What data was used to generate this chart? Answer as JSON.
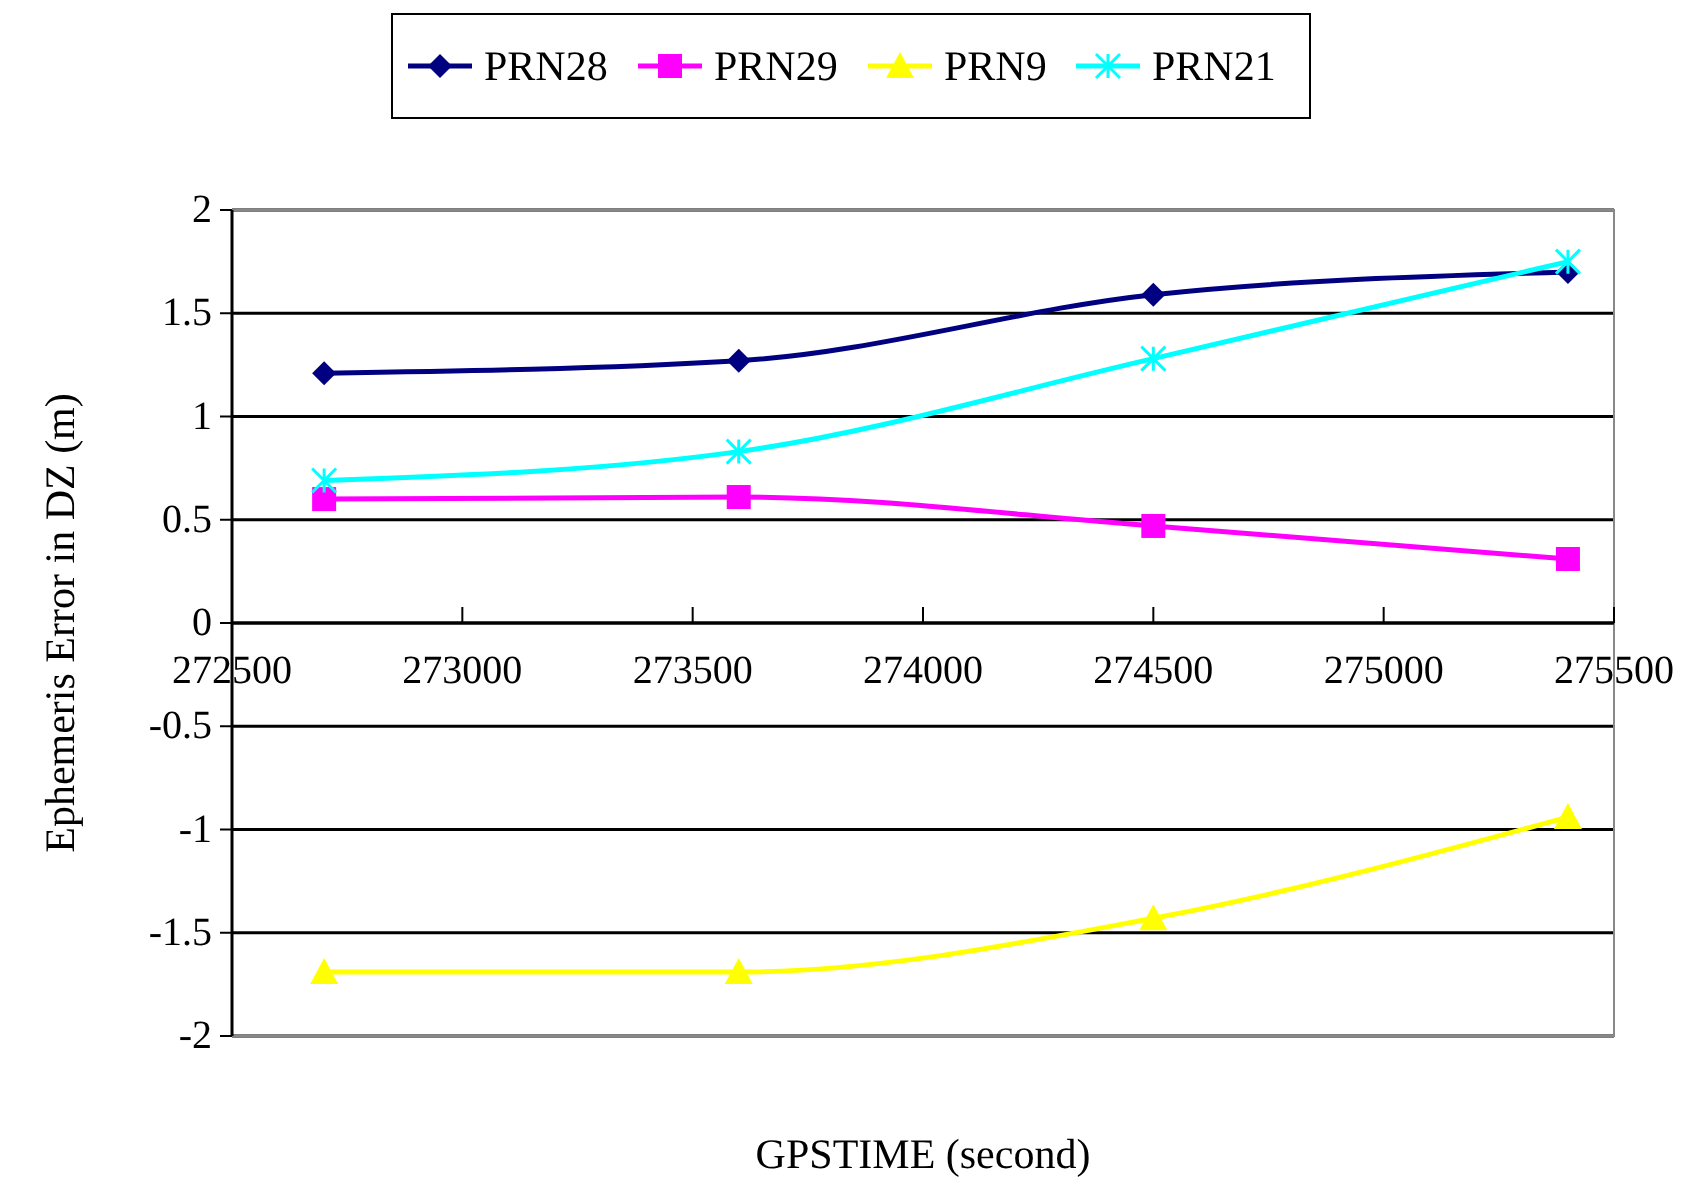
{
  "chart_data": {
    "type": "line",
    "xlabel": "GPSTIME (second)",
    "ylabel": "Ephemeris Error in DZ (m)",
    "x": [
      272700,
      273600,
      274500,
      275400
    ],
    "series": [
      {
        "name": "PRN28",
        "color": "#000080",
        "marker": "diamond",
        "values": [
          1.21,
          1.27,
          1.59,
          1.7
        ]
      },
      {
        "name": "PRN29",
        "color": "#ff00ff",
        "marker": "square",
        "values": [
          0.6,
          0.61,
          0.47,
          0.31
        ]
      },
      {
        "name": "PRN9",
        "color": "#ffff00",
        "marker": "triangle",
        "values": [
          -1.69,
          -1.69,
          -1.43,
          -0.94
        ]
      },
      {
        "name": "PRN21",
        "color": "#00ffff",
        "marker": "cross",
        "values": [
          0.69,
          0.83,
          1.28,
          1.75
        ]
      }
    ],
    "xlim": [
      272500,
      275500
    ],
    "xticks": [
      272500,
      273000,
      273500,
      274000,
      274500,
      275000,
      275500
    ],
    "ylim": [
      -2,
      2
    ],
    "yticks": [
      -2,
      -1.5,
      -1,
      -0.5,
      0,
      0.5,
      1,
      1.5,
      2
    ],
    "grid": "y",
    "legend": "top"
  }
}
